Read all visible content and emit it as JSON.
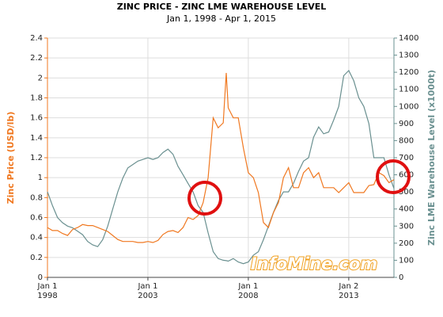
{
  "chart_data": {
    "type": "line",
    "title": "ZINC PRICE - ZINC LME WAREHOUSE LEVEL",
    "subtitle": "Jan 1, 1998 - Apr 1, 2015",
    "ylabel": "Zinc Price (USD/lb)",
    "y2label": "Zinc LME Warehouse Level (x1000t)",
    "watermark": "InfoMine.com",
    "x": [
      1998,
      1998.25,
      1998.5,
      1998.75,
      1999,
      1999.25,
      1999.5,
      1999.75,
      2000,
      2000.25,
      2000.5,
      2000.75,
      2001,
      2001.25,
      2001.5,
      2001.75,
      2002,
      2002.25,
      2002.5,
      2002.75,
      2003,
      2003.25,
      2003.5,
      2003.75,
      2004,
      2004.25,
      2004.5,
      2004.75,
      2005,
      2005.25,
      2005.5,
      2005.75,
      2006,
      2006.25,
      2006.5,
      2006.75,
      2006.9,
      2007,
      2007.25,
      2007.5,
      2007.75,
      2008,
      2008.25,
      2008.5,
      2008.75,
      2009,
      2009.25,
      2009.5,
      2009.75,
      2010,
      2010.25,
      2010.5,
      2010.75,
      2011,
      2011.25,
      2011.5,
      2011.75,
      2012,
      2012.25,
      2012.5,
      2012.75,
      2013,
      2013.25,
      2013.5,
      2013.75,
      2014,
      2014.25,
      2014.5,
      2014.75,
      2015,
      2015.25
    ],
    "series": [
      {
        "color": "#f07820",
        "values": [
          0.5,
          0.47,
          0.47,
          0.44,
          0.42,
          0.48,
          0.5,
          0.53,
          0.52,
          0.52,
          0.5,
          0.48,
          0.46,
          0.42,
          0.38,
          0.36,
          0.36,
          0.36,
          0.35,
          0.35,
          0.36,
          0.35,
          0.37,
          0.43,
          0.46,
          0.47,
          0.45,
          0.5,
          0.6,
          0.58,
          0.62,
          0.75,
          1.0,
          1.6,
          1.5,
          1.55,
          2.05,
          1.7,
          1.6,
          1.6,
          1.3,
          1.05,
          1.0,
          0.85,
          0.55,
          0.5,
          0.65,
          0.75,
          1.0,
          1.1,
          0.9,
          0.9,
          1.05,
          1.1,
          1.0,
          1.05,
          0.9,
          0.9,
          0.9,
          0.85,
          0.9,
          0.95,
          0.85,
          0.85,
          0.85,
          0.92,
          0.93,
          1.05,
          1.02,
          0.95,
          0.98
        ]
      },
      {
        "color": "#6a9090",
        "axis": "y2",
        "values": [
          500,
          420,
          350,
          320,
          300,
          290,
          270,
          250,
          210,
          190,
          180,
          220,
          300,
          400,
          500,
          580,
          640,
          660,
          680,
          690,
          700,
          690,
          700,
          730,
          750,
          720,
          650,
          600,
          550,
          500,
          420,
          380,
          260,
          150,
          110,
          100,
          98,
          95,
          110,
          90,
          80,
          90,
          130,
          150,
          220,
          300,
          380,
          450,
          500,
          500,
          550,
          620,
          680,
          700,
          820,
          880,
          840,
          850,
          920,
          1000,
          1180,
          1210,
          1150,
          1050,
          1000,
          900,
          700,
          700,
          700,
          600,
          520
        ]
      }
    ],
    "xlim": [
      1998,
      2015.25
    ],
    "xticks": [
      {
        "value": 1998,
        "label": "Jan 1\n1998"
      },
      {
        "value": 2003,
        "label": "Jan 1\n2003"
      },
      {
        "value": 2008,
        "label": "Jan 1\n2008"
      },
      {
        "value": 2013,
        "label": "Jan 2\n2013"
      }
    ],
    "ylim": [
      0,
      2.4
    ],
    "yticks": [
      0,
      0.2,
      0.4,
      0.6,
      0.8,
      1,
      1.2,
      1.4,
      1.6,
      1.8,
      2,
      2.2,
      2.4
    ],
    "y2lim": [
      0,
      1400
    ],
    "y2ticks": [
      0,
      100,
      200,
      300,
      400,
      500,
      600,
      700,
      800,
      900,
      1000,
      1100,
      1200,
      1300,
      1400
    ],
    "grid": true
  }
}
